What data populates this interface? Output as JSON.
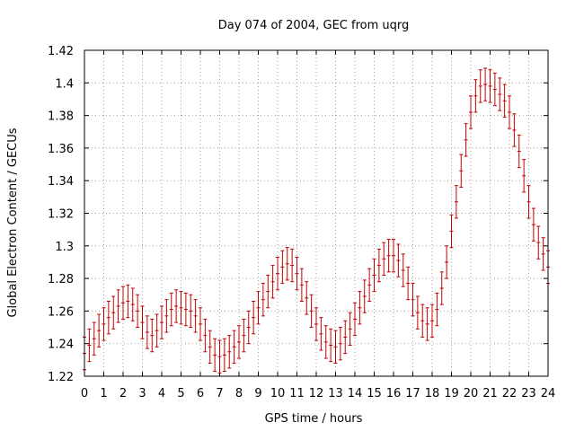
{
  "chart_data": {
    "type": "scatter",
    "title": "Day 074 of 2004, GEC from uqrg",
    "xlabel": "GPS time / hours",
    "ylabel": "Global Electron Content / GECUs",
    "xlim": [
      0,
      24
    ],
    "ylim": [
      1.22,
      1.42
    ],
    "xticks": [
      0,
      1,
      2,
      3,
      4,
      5,
      6,
      7,
      8,
      9,
      10,
      11,
      12,
      13,
      14,
      15,
      16,
      17,
      18,
      19,
      20,
      21,
      22,
      23,
      24
    ],
    "yticks": [
      1.22,
      1.24,
      1.26,
      1.28,
      1.3,
      1.32,
      1.34,
      1.36,
      1.38,
      1.4,
      1.42
    ],
    "ytick_labels": [
      "1.22",
      "1.24",
      "1.26",
      "1.28",
      "1.3",
      "1.32",
      "1.34",
      "1.36",
      "1.38",
      "1.4",
      "1.42"
    ],
    "grid": true,
    "error_bar": 0.01,
    "color": "#c00000",
    "series": [
      {
        "x": [
          0,
          0.25,
          0.5,
          0.75,
          1,
          1.25,
          1.5,
          1.75,
          2,
          2.25,
          2.5,
          2.75,
          3,
          3.25,
          3.5,
          3.75,
          4,
          4.25,
          4.5,
          4.75,
          5,
          5.25,
          5.5,
          5.75,
          6,
          6.25,
          6.5,
          6.75,
          7,
          7.25,
          7.5,
          7.75,
          8,
          8.25,
          8.5,
          8.75,
          9,
          9.25,
          9.5,
          9.75,
          10,
          10.25,
          10.5,
          10.75,
          11,
          11.25,
          11.5,
          11.75,
          12,
          12.25,
          12.5,
          12.75,
          13,
          13.25,
          13.5,
          13.75,
          14,
          14.25,
          14.5,
          14.75,
          15,
          15.25,
          15.5,
          15.75,
          16,
          16.25,
          16.5,
          16.75,
          17,
          17.25,
          17.5,
          17.75,
          18,
          18.25,
          18.5,
          18.75,
          19,
          19.25,
          19.5,
          19.75,
          20,
          20.25,
          20.5,
          20.75,
          21,
          21.25,
          21.5,
          21.75,
          22,
          22.25,
          22.5,
          22.75,
          23,
          23.25,
          23.5,
          23.75,
          24
        ],
        "y": [
          1.234,
          1.239,
          1.243,
          1.248,
          1.252,
          1.256,
          1.259,
          1.263,
          1.265,
          1.266,
          1.264,
          1.26,
          1.253,
          1.247,
          1.245,
          1.248,
          1.253,
          1.257,
          1.261,
          1.263,
          1.262,
          1.261,
          1.26,
          1.257,
          1.252,
          1.245,
          1.238,
          1.233,
          1.232,
          1.233,
          1.235,
          1.238,
          1.241,
          1.245,
          1.25,
          1.256,
          1.262,
          1.267,
          1.272,
          1.278,
          1.283,
          1.287,
          1.289,
          1.288,
          1.283,
          1.276,
          1.268,
          1.26,
          1.252,
          1.246,
          1.241,
          1.239,
          1.238,
          1.24,
          1.244,
          1.249,
          1.255,
          1.262,
          1.269,
          1.276,
          1.282,
          1.288,
          1.292,
          1.294,
          1.294,
          1.291,
          1.285,
          1.277,
          1.267,
          1.259,
          1.254,
          1.252,
          1.254,
          1.261,
          1.274,
          1.29,
          1.309,
          1.327,
          1.346,
          1.365,
          1.382,
          1.392,
          1.398,
          1.399,
          1.398,
          1.396,
          1.393,
          1.389,
          1.382,
          1.371,
          1.358,
          1.343,
          1.327,
          1.313,
          1.302,
          1.295,
          1.287
        ]
      }
    ]
  }
}
